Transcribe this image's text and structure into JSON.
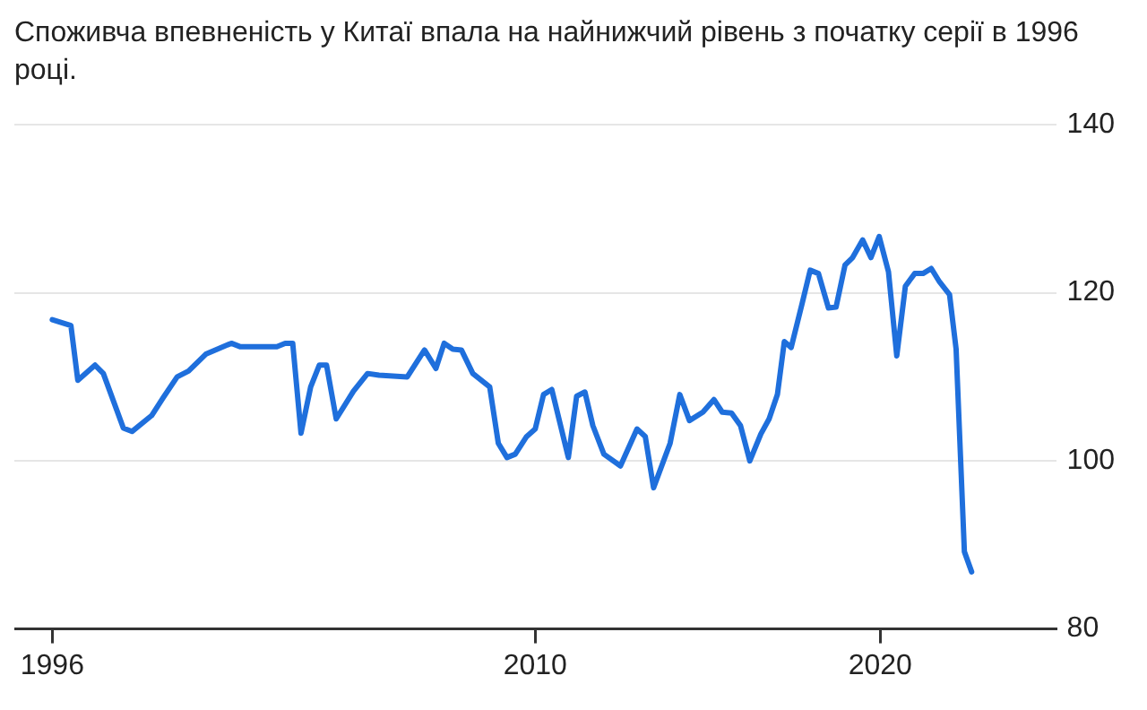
{
  "chart_data": {
    "type": "line",
    "title": "Споживча впевненість у Китаї впала на найнижчий рівень з початку серії в 1996 році.",
    "x": [
      1996.0,
      1996.54,
      1996.74,
      1997.24,
      1997.48,
      1998.06,
      1998.31,
      1998.88,
      1999.21,
      1999.62,
      1999.95,
      2000.45,
      2001.19,
      2001.44,
      2002.51,
      2002.75,
      2002.97,
      2003.21,
      2003.49,
      2003.74,
      2003.95,
      2004.23,
      2004.73,
      2005.14,
      2005.47,
      2006.29,
      2006.79,
      2007.12,
      2007.36,
      2007.61,
      2007.86,
      2008.19,
      2008.68,
      2008.93,
      2009.18,
      2009.42,
      2009.75,
      2010.0,
      2010.24,
      2010.48,
      2010.96,
      2011.2,
      2011.44,
      2011.67,
      2011.99,
      2012.47,
      2012.95,
      2013.19,
      2013.43,
      2013.91,
      2014.19,
      2014.47,
      2014.86,
      2015.18,
      2015.42,
      2015.69,
      2015.95,
      2016.22,
      2016.54,
      2016.78,
      2017.02,
      2017.22,
      2017.42,
      2017.74,
      2017.97,
      2018.21,
      2018.5,
      2018.72,
      2018.98,
      2019.2,
      2019.49,
      2019.73,
      2019.97,
      2020.24,
      2020.48,
      2020.73,
      2021.0,
      2021.24,
      2021.48,
      2021.72,
      2022.01,
      2022.2,
      2022.44,
      2022.65
    ],
    "series": [
      {
        "color": "#1f6fdc",
        "values": [
          116.8,
          116.1,
          109.6,
          111.4,
          110.4,
          103.9,
          103.5,
          105.4,
          107.5,
          110,
          110.7,
          112.7,
          114,
          113.6,
          113.6,
          114,
          114,
          103.3,
          108.8,
          111.4,
          111.4,
          105,
          108.3,
          110.4,
          110.2,
          110,
          113.2,
          111,
          114,
          113.3,
          113.2,
          110.4,
          108.8,
          102.1,
          100.4,
          100.8,
          102.9,
          103.8,
          107.9,
          108.5,
          100.4,
          107.7,
          108.2,
          104.2,
          100.8,
          99.4,
          103.8,
          102.9,
          96.8,
          102.1,
          107.9,
          104.8,
          105.8,
          107.3,
          105.8,
          105.7,
          104.2,
          100,
          103.2,
          105,
          107.9,
          114.2,
          113.5,
          118.8,
          122.7,
          122.3,
          118.2,
          118.3,
          123.3,
          124.2,
          126.3,
          124.2,
          126.7,
          122.5,
          112.5,
          120.8,
          122.3,
          122.3,
          122.9,
          121.3,
          119.8,
          113.3,
          89.2,
          86.8
        ]
      }
    ],
    "xlim": [
      1994.9,
      2025.1
    ],
    "xticks": [
      1996,
      2010,
      2020
    ],
    "ylim": [
      80,
      140
    ],
    "yticks": [
      80,
      100,
      120,
      140
    ],
    "grid": "y",
    "legend": false,
    "marker": "none",
    "line_style": "solid"
  }
}
